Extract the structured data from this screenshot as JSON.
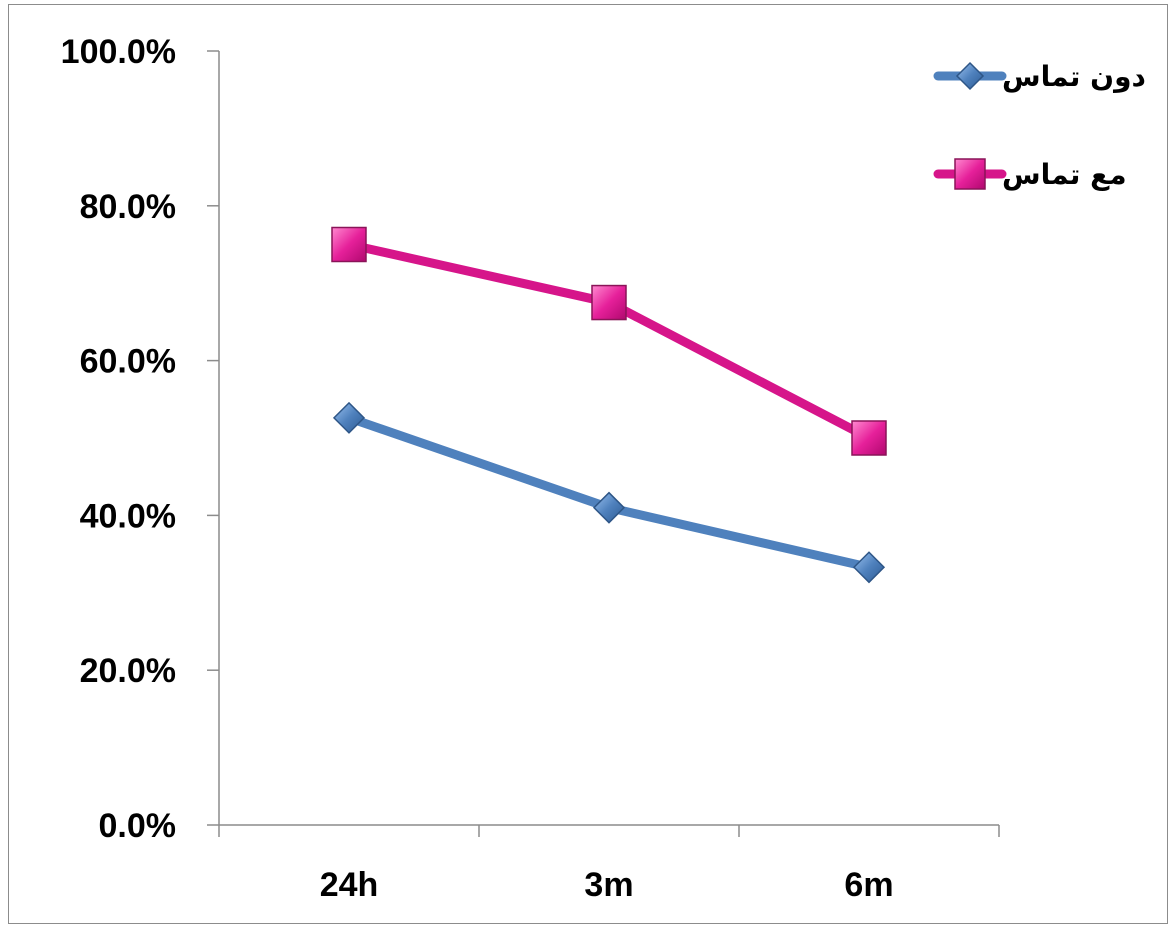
{
  "chart_data": {
    "type": "line",
    "categories": [
      "24h",
      "3m",
      "6m"
    ],
    "series": [
      {
        "name": "دون تماس",
        "values": [
          52.6,
          41.0,
          33.3
        ],
        "color": "#4f81bd",
        "marker": "diamond"
      },
      {
        "name": "مع تماس",
        "values": [
          75.0,
          67.5,
          50.0
        ],
        "color": "#d6158a",
        "marker": "square"
      }
    ],
    "yticks": [
      "0.0%",
      "20.0%",
      "40.0%",
      "60.0%",
      "80.0%",
      "100.0%"
    ],
    "ylim": [
      0,
      100
    ],
    "title": "",
    "xlabel": "",
    "ylabel": "",
    "grid": false,
    "legend_position": "top-right"
  }
}
